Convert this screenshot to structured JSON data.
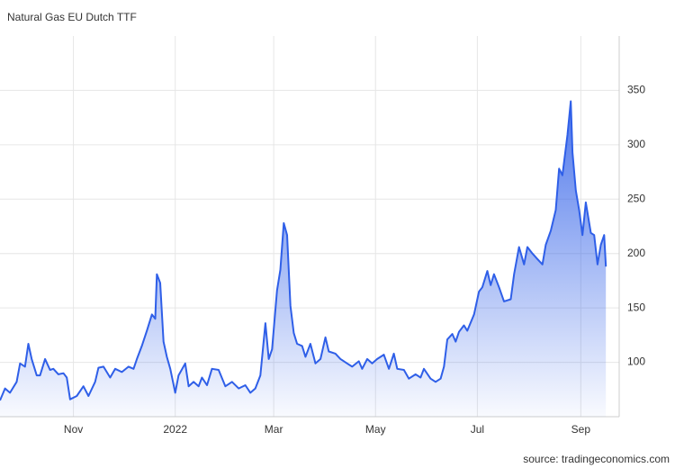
{
  "chart_data": {
    "type": "area",
    "title": "Natural Gas EU Dutch TTF",
    "source": "source: tradingeconomics.com",
    "x": [
      0,
      3,
      6,
      10,
      12,
      15,
      17,
      19,
      22,
      24,
      27,
      30,
      32,
      35,
      38,
      40,
      42,
      46,
      50,
      53,
      57,
      59,
      62,
      66,
      69,
      73,
      77,
      80,
      82,
      85,
      88,
      91,
      93,
      94,
      96,
      98,
      100,
      102,
      105,
      107,
      111,
      113,
      116,
      119,
      121,
      124,
      127,
      131,
      135,
      139,
      143,
      147,
      150,
      153,
      156,
      159,
      161,
      163,
      166,
      168,
      170,
      172,
      174,
      176,
      178,
      181,
      183,
      186,
      189,
      192,
      195,
      197,
      201,
      204,
      208,
      211,
      215,
      217,
      220,
      223,
      226,
      230,
      233,
      236,
      238,
      242,
      245,
      249,
      252,
      254,
      258,
      261,
      264,
      266,
      268,
      271,
      273,
      275,
      278,
      280,
      284,
      287,
      289,
      292,
      294,
      296,
      299,
      302,
      306,
      308,
      311,
      314,
      316,
      319,
      322,
      325,
      327,
      330,
      333,
      335,
      337,
      340,
      342,
      343,
      345,
      347,
      349,
      351,
      354,
      356,
      358,
      360,
      362,
      363
    ],
    "series": [
      {
        "name": "Natural Gas EU Dutch TTF",
        "color": "#2f5fe8",
        "values": [
          65,
          76,
          72,
          82,
          99,
          96,
          117,
          103,
          88,
          88,
          103,
          93,
          94,
          89,
          90,
          86,
          66,
          69,
          78,
          69,
          82,
          95,
          96,
          86,
          94,
          91,
          96,
          94,
          103,
          115,
          129,
          144,
          140,
          181,
          173,
          119,
          105,
          94,
          72,
          88,
          99,
          78,
          82,
          78,
          86,
          79,
          94,
          93,
          78,
          82,
          76,
          79,
          72,
          76,
          88,
          136,
          103,
          112,
          166,
          185,
          228,
          217,
          152,
          127,
          117,
          115,
          105,
          117,
          99,
          103,
          123,
          110,
          108,
          103,
          99,
          96,
          101,
          94,
          103,
          99,
          103,
          107,
          94,
          108,
          94,
          93,
          85,
          89,
          86,
          94,
          85,
          82,
          85,
          96,
          121,
          126,
          119,
          128,
          134,
          129,
          144,
          165,
          169,
          184,
          171,
          181,
          169,
          156,
          158,
          181,
          206,
          190,
          206,
          200,
          195,
          190,
          208,
          221,
          240,
          278,
          272,
          309,
          340,
          293,
          258,
          240,
          217,
          247,
          219,
          217,
          190,
          208,
          217,
          188
        ]
      }
    ],
    "xlim": [
      0,
      371
    ],
    "ylim": [
      50,
      400
    ],
    "xticks": [
      {
        "value": 44,
        "label": "Nov"
      },
      {
        "value": 105,
        "label": "2022"
      },
      {
        "value": 164,
        "label": "Mar"
      },
      {
        "value": 225,
        "label": "May"
      },
      {
        "value": 286,
        "label": "Jul"
      },
      {
        "value": 348,
        "label": "Sep"
      }
    ],
    "yticks": [
      100,
      150,
      200,
      250,
      300,
      350
    ],
    "grid": true
  }
}
